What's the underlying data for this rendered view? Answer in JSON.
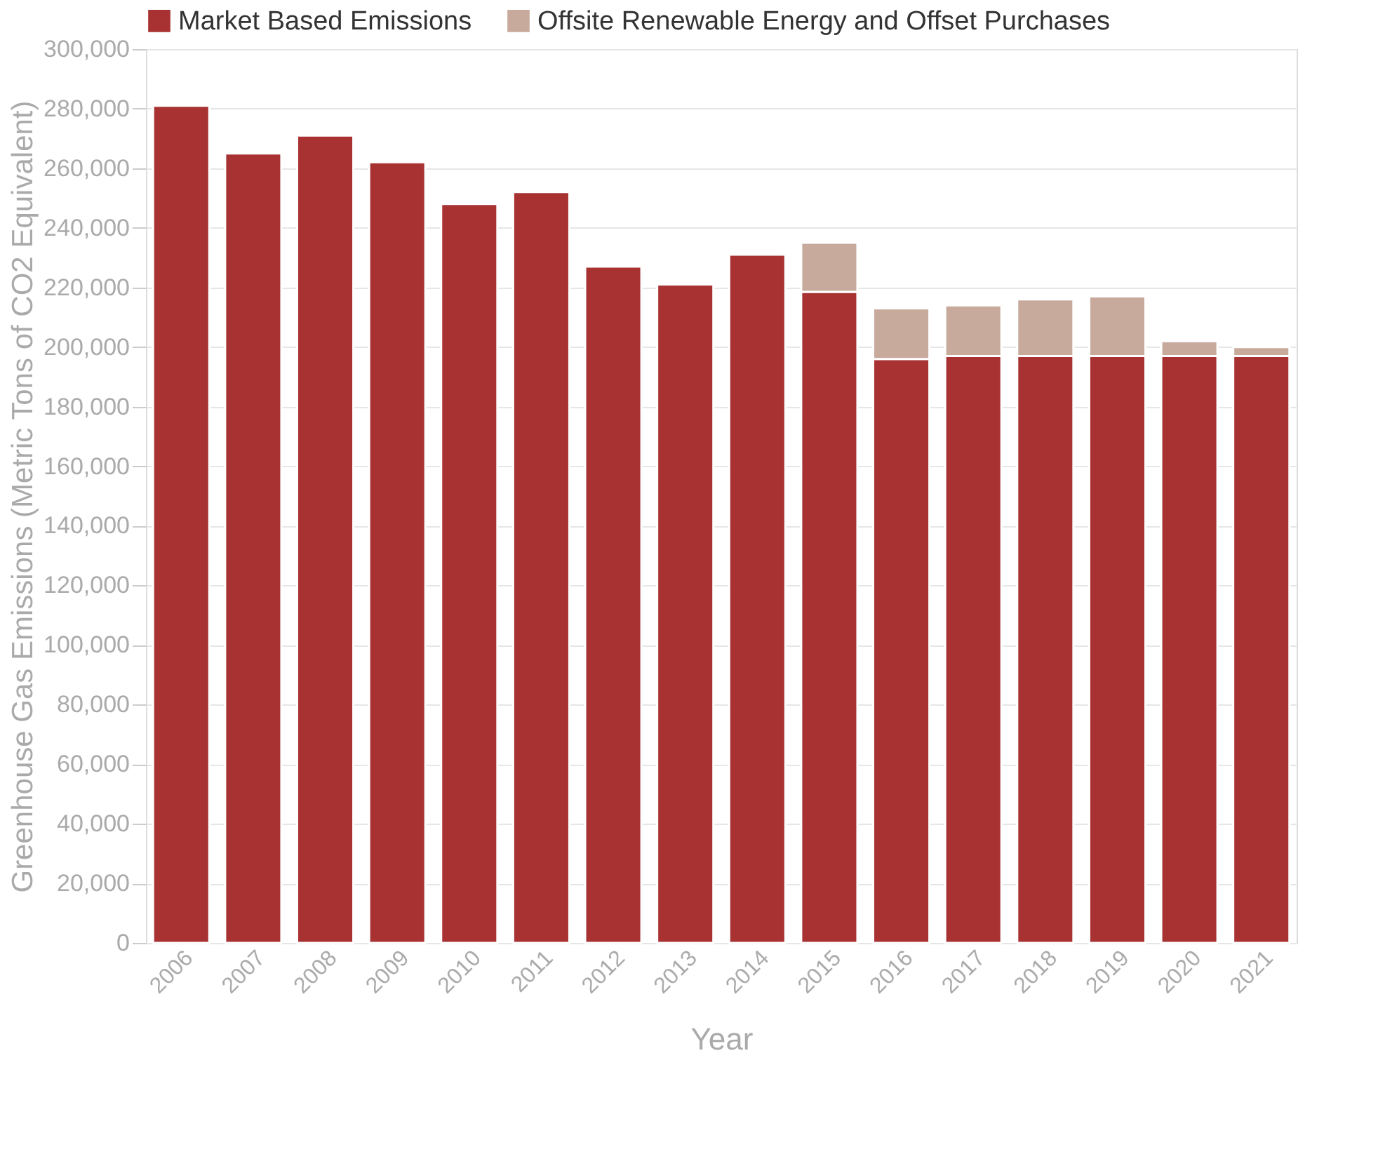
{
  "chart_data": {
    "type": "bar",
    "stacked": true,
    "xlabel": "Year",
    "ylabel": "Greenhouse Gas Emissions (Metric Tons of CO2 Equivalent)",
    "categories": [
      "2006",
      "2007",
      "2008",
      "2009",
      "2010",
      "2011",
      "2012",
      "2013",
      "2014",
      "2015",
      "2016",
      "2017",
      "2018",
      "2019",
      "2020",
      "2021"
    ],
    "series": [
      {
        "name": "Market Based Emissions",
        "color": "#a83232",
        "values": [
          281000,
          265000,
          271000,
          262000,
          248000,
          252000,
          227000,
          221000,
          231000,
          218500,
          196000,
          197000,
          197000,
          197000,
          197000,
          197000
        ]
      },
      {
        "name": "Offsite Renewable Energy and Offset Purchases",
        "color": "#c8aa9c",
        "values": [
          null,
          null,
          null,
          null,
          null,
          null,
          null,
          null,
          null,
          16500,
          17000,
          17000,
          19000,
          20000,
          5000,
          3000
        ]
      }
    ],
    "ylim": [
      0,
      300000
    ],
    "yticks": [
      0,
      {
        "value": 20000,
        "label": "20,000"
      },
      {
        "value": 40000,
        "label": "40,000"
      },
      {
        "value": 60000,
        "label": "60,000"
      },
      {
        "value": 80000,
        "label": "80,000"
      },
      {
        "value": 100000,
        "label": "100,000"
      },
      {
        "value": 120000,
        "label": "120,000"
      },
      {
        "value": 140000,
        "label": "140,000"
      },
      {
        "value": 160000,
        "label": "160,000"
      },
      {
        "value": 180000,
        "label": "180,000"
      },
      {
        "value": 200000,
        "label": "200,000"
      },
      {
        "value": 220000,
        "label": "220,000"
      },
      {
        "value": 240000,
        "label": "240,000"
      },
      {
        "value": 260000,
        "label": "260,000"
      },
      {
        "value": 280000,
        "label": "280,000"
      },
      {
        "value": 300000,
        "label": "300,000"
      }
    ],
    "grid": "y",
    "legend": "top left"
  }
}
